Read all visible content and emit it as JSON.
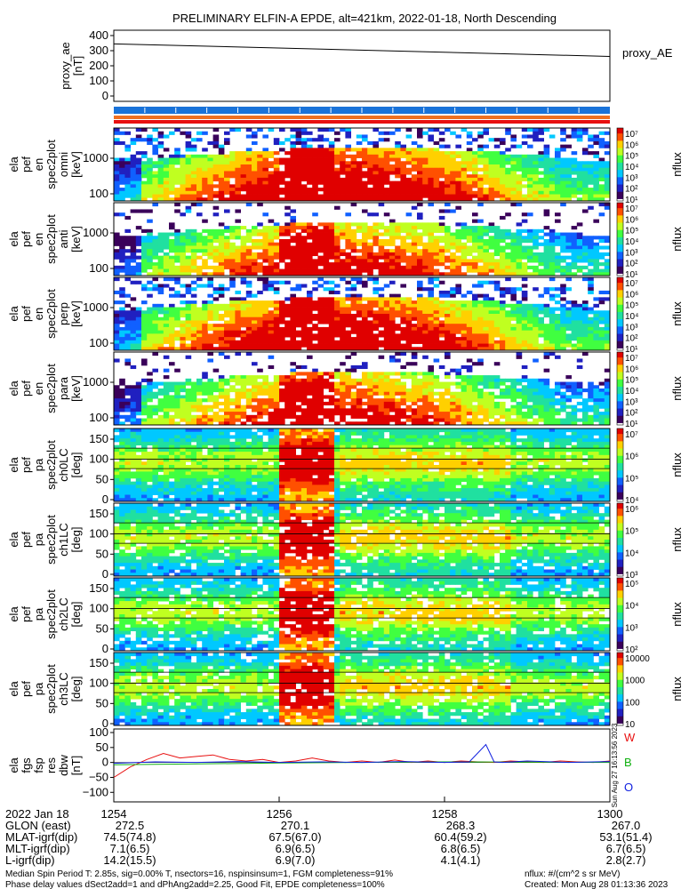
{
  "title": "PRELIMINARY ELFIN-A EPDE, alt=421km, 2022-01-18, North Descending",
  "colors": {
    "status_bar_blue": "#1a73d9",
    "status_bar_orange": "#f07020",
    "status_bar_red": "#e81010",
    "line_black": "#000000",
    "line_red": "#e81010",
    "line_green": "#10b010",
    "line_blue": "#1020e0"
  },
  "colorbar_palette": [
    "#ffffff",
    "#3a005a",
    "#2020c0",
    "#1060ff",
    "#00c8ff",
    "#20e0a0",
    "#40ff40",
    "#c0ff20",
    "#ffd000",
    "#ff5000",
    "#e00000"
  ],
  "chart_data": [
    {
      "type": "line",
      "panel": "proxy_ae",
      "ylabel_lines": [
        "proxy_ae",
        "[nT]"
      ],
      "legend": "proxy_AE",
      "ylim": [
        0,
        400
      ],
      "yticks": [
        "400",
        "300",
        "200",
        "100",
        "0"
      ],
      "x_minutes": [
        0,
        6
      ],
      "series": [
        {
          "x": [
            0,
            6
          ],
          "values": [
            345,
            262
          ]
        }
      ]
    },
    {
      "type": "heatmap",
      "panel": "spec2plot_omni",
      "ylabel_lines": [
        "ela",
        "pef",
        "en",
        "spec2plot",
        "omni",
        "[keV]"
      ],
      "yscale": "log",
      "yticks": [
        "1000",
        "100"
      ],
      "colorbar_label": "nflux",
      "colorbar_ticks": [
        "10⁷",
        "10⁶",
        "10⁵",
        "10⁴",
        "10³",
        "10²",
        "10¹"
      ]
    },
    {
      "type": "heatmap",
      "panel": "spec2plot_anti",
      "ylabel_lines": [
        "ela",
        "pef",
        "en",
        "spec2plot",
        "anti",
        "[keV]"
      ],
      "yscale": "log",
      "yticks": [
        "1000",
        "100"
      ],
      "colorbar_label": "nflux",
      "colorbar_ticks": [
        "10⁷",
        "10⁶",
        "10⁵",
        "10⁴",
        "10³",
        "10²",
        "10¹"
      ]
    },
    {
      "type": "heatmap",
      "panel": "spec2plot_perp",
      "ylabel_lines": [
        "ela",
        "pef",
        "en",
        "spec2plot",
        "perp",
        "[keV]"
      ],
      "yscale": "log",
      "yticks": [
        "1000",
        "100"
      ],
      "colorbar_label": "nflux",
      "colorbar_ticks": [
        "10⁷",
        "10⁶",
        "10⁵",
        "10⁴",
        "10³",
        "10²",
        "10¹"
      ]
    },
    {
      "type": "heatmap",
      "panel": "spec2plot_para",
      "ylabel_lines": [
        "ela",
        "pef",
        "en",
        "spec2plot",
        "para",
        "[keV]"
      ],
      "yscale": "log",
      "yticks": [
        "1000",
        "100"
      ],
      "colorbar_label": "nflux",
      "colorbar_ticks": [
        "10⁷",
        "10⁶",
        "10⁵",
        "10⁴",
        "10³",
        "10²",
        "10¹"
      ]
    },
    {
      "type": "heatmap",
      "panel": "spec2plot_ch0LC",
      "ylabel_lines": [
        "ela",
        "pef",
        "pa",
        "spec2plot",
        "ch0LC",
        "[deg]"
      ],
      "yticks": [
        "150",
        "100",
        "50",
        "0"
      ],
      "colorbar_label": "nflux",
      "colorbar_ticks": [
        "10⁷",
        "10⁶",
        "10⁵",
        "10⁴"
      ]
    },
    {
      "type": "heatmap",
      "panel": "spec2plot_ch1LC",
      "ylabel_lines": [
        "ela",
        "pef",
        "pa",
        "spec2plot",
        "ch1LC",
        "[deg]"
      ],
      "yticks": [
        "150",
        "100",
        "50",
        "0"
      ],
      "colorbar_label": "nflux",
      "colorbar_ticks": [
        "10⁶",
        "10⁵",
        "10⁴",
        "10³"
      ]
    },
    {
      "type": "heatmap",
      "panel": "spec2plot_ch2LC",
      "ylabel_lines": [
        "ela",
        "pef",
        "pa",
        "spec2plot",
        "ch2LC",
        "[deg]"
      ],
      "yticks": [
        "150",
        "100",
        "50",
        "0"
      ],
      "colorbar_label": "nflux",
      "colorbar_ticks": [
        "10⁵",
        "10⁴",
        "10³",
        "10²"
      ]
    },
    {
      "type": "heatmap",
      "panel": "spec2plot_ch3LC",
      "ylabel_lines": [
        "ela",
        "pef",
        "pa",
        "spec2plot",
        "ch3LC",
        "[deg]"
      ],
      "yticks": [
        "150",
        "100",
        "50",
        "0"
      ],
      "colorbar_label": "nflux",
      "colorbar_ticks": [
        "10000",
        "1000",
        "100",
        "10"
      ]
    },
    {
      "type": "line",
      "panel": "dbw",
      "ylabel_lines": [
        "ela",
        "fgs",
        "fsp",
        "res",
        "dbw",
        "[nT]"
      ],
      "ylim": [
        -120,
        100
      ],
      "yticks": [
        "100",
        "50",
        "0",
        "−50",
        "−100"
      ],
      "legend": [
        {
          "name": "W",
          "color": "#e81010"
        },
        {
          "name": "B",
          "color": "#10b010"
        },
        {
          "name": "O",
          "color": "#1020e0"
        }
      ],
      "side_stamp": "Sun Aug 27 16:13:56 2023",
      "x_minutes": [
        0,
        6
      ],
      "series": [
        {
          "name": "W",
          "color": "#e81010",
          "x": [
            0,
            0.2,
            0.4,
            0.6,
            0.8,
            1.0,
            1.2,
            1.4,
            1.6,
            1.8,
            2.0,
            2.2,
            2.4,
            2.6,
            2.8,
            3.0,
            3.2,
            3.4,
            3.6,
            3.8,
            4.0,
            4.2,
            4.4,
            4.6,
            4.8,
            5.0,
            5.2,
            5.4,
            5.6,
            5.8,
            6.0
          ],
          "values": [
            -50,
            -15,
            10,
            30,
            15,
            20,
            25,
            10,
            5,
            10,
            0,
            5,
            15,
            5,
            0,
            5,
            0,
            8,
            0,
            5,
            0,
            5,
            2,
            0,
            5,
            2,
            0,
            5,
            2,
            0,
            5
          ]
        },
        {
          "name": "B",
          "color": "#10b010",
          "x": [
            0,
            1,
            2,
            3,
            4,
            5,
            6
          ],
          "values": [
            -8,
            -5,
            -2,
            0,
            2,
            1,
            0
          ]
        },
        {
          "name": "O",
          "color": "#1020e0",
          "x": [
            0,
            0.5,
            1,
            1.5,
            2,
            2.5,
            3,
            3.5,
            4,
            4.3,
            4.5,
            4.6,
            4.7,
            5,
            5.5,
            6
          ],
          "values": [
            -3,
            2,
            0,
            3,
            0,
            2,
            0,
            3,
            0,
            2,
            60,
            2,
            0,
            5,
            0,
            3
          ]
        }
      ]
    }
  ],
  "time_axis": {
    "date": "2022 Jan 18",
    "ticks": [
      "1254",
      "1256",
      "1258",
      "1300"
    ]
  },
  "ephemeris": [
    {
      "label": "GLON (east)",
      "values": [
        "272.5",
        "270.1",
        "268.3",
        "267.0"
      ]
    },
    {
      "label": "MLAT-igrf(dip)",
      "values": [
        "74.5(74.8)",
        "67.5(67.0)",
        "60.4(59.2)",
        "53.1(51.4)"
      ]
    },
    {
      "label": "MLT-igrf(dip)",
      "values": [
        "7.1(6.5)",
        "6.9(6.5)",
        "6.8(6.5)",
        "6.7(6.5)"
      ]
    },
    {
      "label": "L-igrf(dip)",
      "values": [
        "14.2(15.5)",
        "6.9(7.0)",
        "4.1(4.1)",
        "2.8(2.7)"
      ]
    }
  ],
  "footer": {
    "line1_left": "Median Spin Period T: 2.85s, sig=0.00% T, nsectors=16, nspinsinsum=1, FGM completeness=91%",
    "line2_left": "Phase delay values dSect2add=1 and dPhAng2add=2.25, Good Fit, EPDE completeness=100%",
    "line1_right": "nflux: #/(cm^2 s sr MeV)",
    "line2_right": "Created: Mon Aug 28 01:13:36 2023"
  }
}
